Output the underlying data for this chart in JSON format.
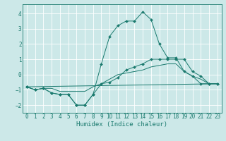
{
  "xlabel": "Humidex (Indice chaleur)",
  "bg_color": "#cce8e8",
  "line_color": "#1a7a6e",
  "grid_color": "#ffffff",
  "xlim": [
    -0.5,
    23.5
  ],
  "ylim": [
    -2.5,
    4.6
  ],
  "xticks": [
    0,
    1,
    2,
    3,
    4,
    5,
    6,
    7,
    8,
    9,
    10,
    11,
    12,
    13,
    14,
    15,
    16,
    17,
    18,
    19,
    20,
    21,
    22,
    23
  ],
  "yticks": [
    -2,
    -1,
    0,
    1,
    2,
    3,
    4
  ],
  "lines": [
    {
      "x": [
        0,
        1,
        2,
        3,
        4,
        5,
        6,
        7,
        8,
        9,
        10,
        11,
        12,
        13,
        14,
        15,
        16,
        17,
        18,
        19,
        20,
        21,
        22,
        23
      ],
      "y": [
        -0.8,
        -1.0,
        -0.9,
        -1.2,
        -1.3,
        -1.3,
        -2.0,
        -2.0,
        -1.3,
        0.7,
        2.5,
        3.2,
        3.5,
        3.5,
        4.1,
        3.6,
        2.0,
        1.1,
        1.1,
        0.2,
        -0.1,
        -0.6,
        -0.6,
        -0.6
      ],
      "marker": true,
      "markersize": 2.0
    },
    {
      "x": [
        0,
        1,
        2,
        3,
        4,
        5,
        6,
        7,
        8,
        9,
        10,
        11,
        12,
        13,
        14,
        15,
        16,
        17,
        18,
        19,
        20,
        21,
        22,
        23
      ],
      "y": [
        -0.8,
        -1.0,
        -0.9,
        -1.2,
        -1.3,
        -1.3,
        -2.0,
        -2.0,
        -1.3,
        -0.6,
        -0.5,
        -0.2,
        0.3,
        0.5,
        0.7,
        1.0,
        1.0,
        1.0,
        1.0,
        1.0,
        0.2,
        -0.1,
        -0.6,
        -0.6
      ],
      "marker": true,
      "markersize": 2.0
    },
    {
      "x": [
        0,
        1,
        2,
        3,
        4,
        5,
        6,
        7,
        8,
        9,
        10,
        11,
        12,
        13,
        14,
        15,
        16,
        17,
        18,
        19,
        20,
        21,
        22,
        23
      ],
      "y": [
        -0.8,
        -1.0,
        -0.9,
        -0.9,
        -1.1,
        -1.1,
        -1.1,
        -1.1,
        -0.8,
        -0.6,
        -0.3,
        0.0,
        0.1,
        0.2,
        0.3,
        0.5,
        0.6,
        0.7,
        0.7,
        0.2,
        -0.1,
        -0.3,
        -0.6,
        -0.6
      ],
      "marker": false,
      "markersize": 0
    },
    {
      "x": [
        0,
        23
      ],
      "y": [
        -0.8,
        -0.6
      ],
      "marker": false,
      "markersize": 0
    }
  ]
}
